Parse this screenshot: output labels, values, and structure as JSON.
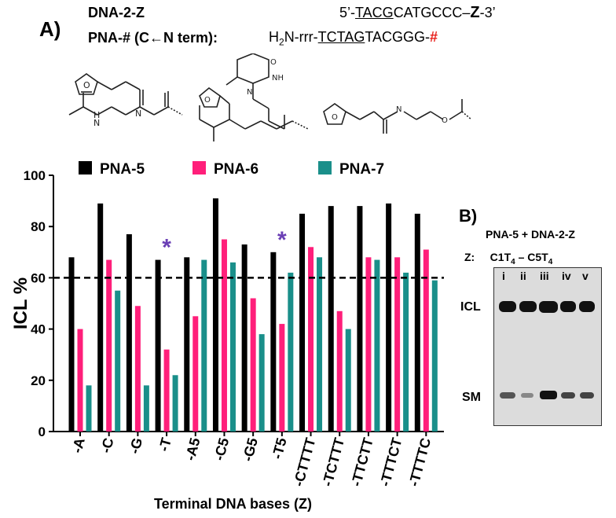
{
  "header": {
    "panel_a": "A)",
    "dna_name": "DNA-2-Z",
    "dna_prefix": "5’-",
    "dna_underlined": "TACG",
    "dna_rest": "CATGCCC",
    "dna_dash": "–",
    "dna_z": "Z",
    "dna_suffix": "-3’",
    "pna_name": "PNA-# (C←N term):",
    "pna_h": "H",
    "pna_sub": "2",
    "pna_n": "N-rrr-",
    "pna_underlined": "TCTAG",
    "pna_rest": "TACGGG-",
    "pna_hash": "#"
  },
  "legend": [
    {
      "label": "PNA-5",
      "color": "#000000"
    },
    {
      "label": "PNA-6",
      "color": "#ff1f7a"
    },
    {
      "label": "PNA-7",
      "color": "#1a8f8a"
    }
  ],
  "chart_data": {
    "type": "bar",
    "xlabel": "Terminal DNA bases (Z)",
    "ylabel": "ICL %",
    "ylim": [
      0,
      100
    ],
    "yticks": [
      0,
      20,
      40,
      60,
      80,
      100
    ],
    "reference_line": 60,
    "categories": [
      "-A",
      "-C",
      "-G",
      "-T",
      "-A5",
      "-C5",
      "-G5",
      "-T5",
      "-CTTTT",
      "-TCTTT",
      "-TTCTT",
      "-TTTCT",
      "-TTTTC"
    ],
    "series": [
      {
        "name": "PNA-5",
        "color": "#000000",
        "values": [
          68,
          89,
          77,
          67,
          68,
          91,
          73,
          70,
          85,
          88,
          88,
          89,
          85
        ]
      },
      {
        "name": "PNA-6",
        "color": "#ff1f7a",
        "values": [
          40,
          67,
          49,
          32,
          45,
          75,
          52,
          42,
          72,
          47,
          68,
          68,
          71
        ]
      },
      {
        "name": "PNA-7",
        "color": "#1a8f8a",
        "values": [
          18,
          55,
          18,
          22,
          67,
          66,
          38,
          62,
          68,
          40,
          67,
          62,
          59
        ]
      }
    ],
    "annotations": [
      {
        "category": "-T",
        "text": "*",
        "color": "#6a3fb5"
      },
      {
        "category": "-T5",
        "text": "*",
        "color": "#6a3fb5"
      }
    ]
  },
  "gel": {
    "panel_b": "B)",
    "title": "PNA-5 + DNA-2-Z",
    "z_label": "Z:",
    "range_a": "C1T",
    "range_a_sub": "4",
    "range_dash": " – ",
    "range_b": "C5T",
    "range_b_sub": "4",
    "lanes": [
      "i",
      "ii",
      "iii",
      "iv",
      "v"
    ],
    "icl_label": "ICL",
    "sm_label": "SM"
  }
}
